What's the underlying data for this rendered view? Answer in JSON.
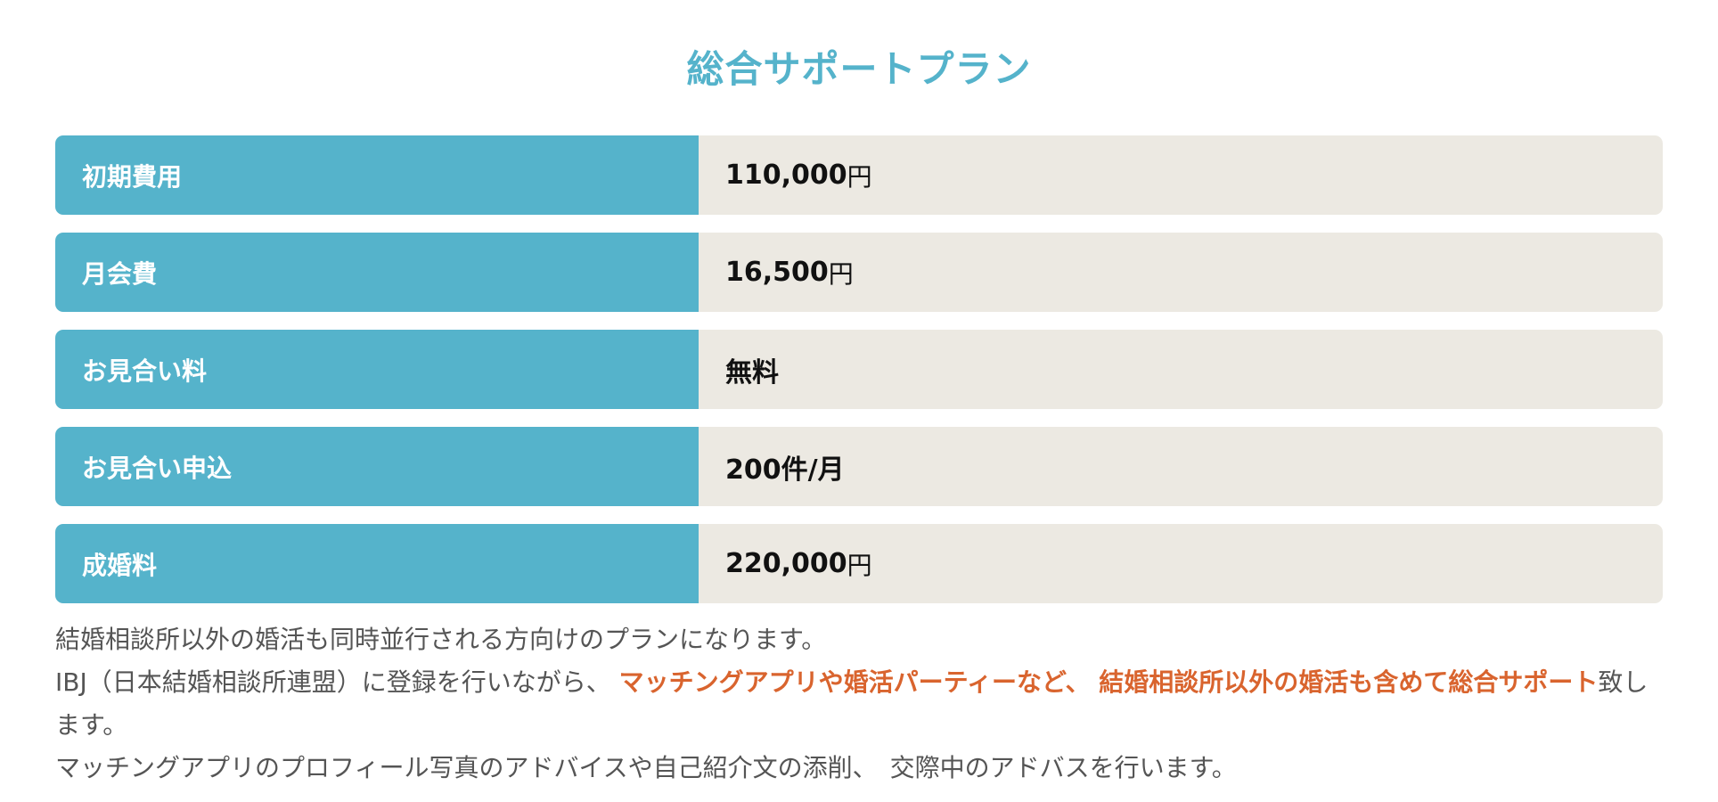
{
  "title": "総合サポートプラン",
  "table": {
    "rows": [
      {
        "label": "初期費用",
        "value": "110,000",
        "unit": "円"
      },
      {
        "label": "月会費",
        "value": "16,500",
        "unit": "円"
      },
      {
        "label": "お見合い料",
        "value": "無料",
        "unit": ""
      },
      {
        "label": "お見合い申込",
        "value": "200件/月",
        "unit": ""
      },
      {
        "label": "成婚料",
        "value": "220,000",
        "unit": "円"
      }
    ]
  },
  "description": {
    "line1": "結婚相談所以外の婚活も同時並行される方向けのプランになります。",
    "line2_prefix": "IBJ（日本結婚相談所連盟）に登録を行いながら、",
    "line2_highlight": "マッチングアプリや婚活パーティーなど、 結婚相談所以外の婚活も含めて総合サポート",
    "line2_suffix": "致します。",
    "line3": "マッチングアプリのプロフィール写真のアドバイスや自己紹介文の添削、　交際中のアドバスを行います。"
  },
  "colors": {
    "accent": "#55b3cb",
    "value_bg": "#ece9e2",
    "highlight": "#d9642e",
    "body_text": "#555555"
  }
}
